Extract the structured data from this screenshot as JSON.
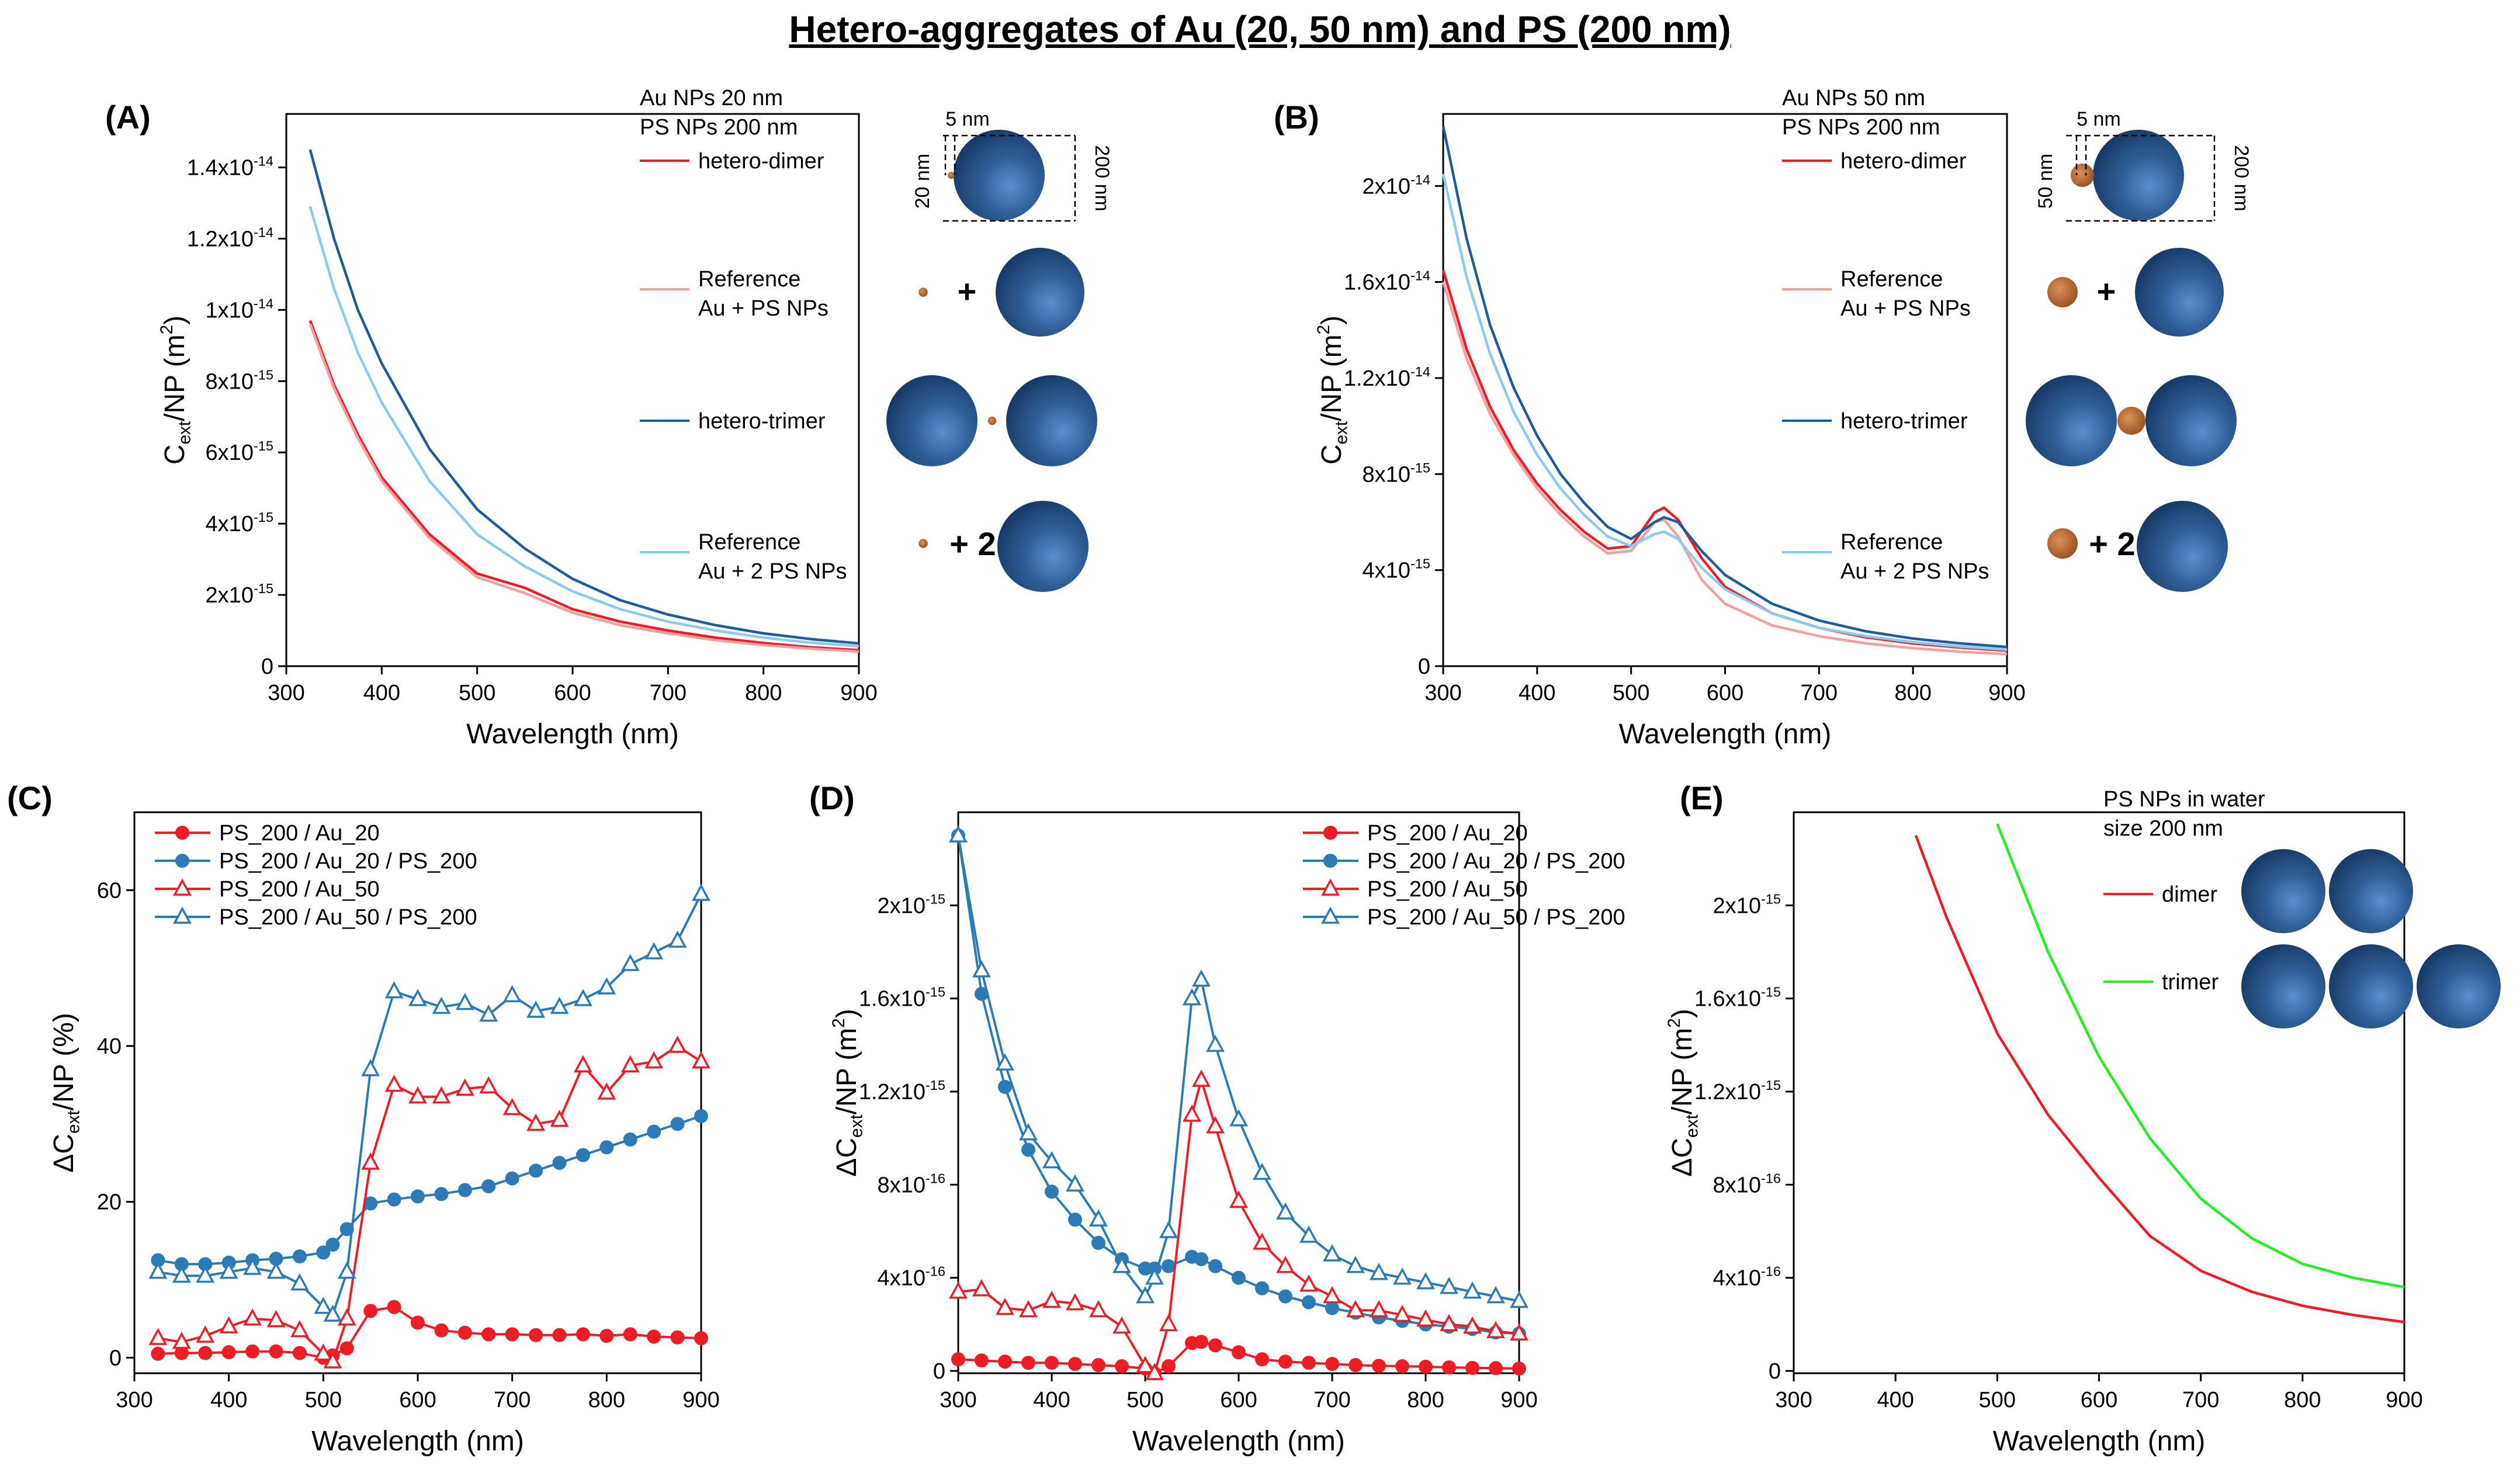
{
  "title": "Hetero-aggregates of Au (20, 50 nm) and PS (200 nm)",
  "colors": {
    "red": "#ee1c25",
    "pink": "#f4a0a0",
    "navy": "#1f5c99",
    "lightblue": "#8ec9f0",
    "steel": "#2c7bb6",
    "green": "#22ee22",
    "gold": "#b06030",
    "sphere": "#2f5f98"
  },
  "chart_data": [
    {
      "panel": "(A)",
      "type": "line",
      "xlabel": "Wavelength (nm)",
      "ylabel": "C_ext/NP (m^2)",
      "xlim": [
        300,
        900
      ],
      "ylim": [
        0,
        1.55e-14
      ],
      "xticks": [
        "300",
        "400",
        "500",
        "600",
        "700",
        "800",
        "900"
      ],
      "yticks": [
        {
          "v": 0,
          "label": "0"
        },
        {
          "v": 2e-15,
          "label": "2x10^-15"
        },
        {
          "v": 4e-15,
          "label": "4x10^-15"
        },
        {
          "v": 6e-15,
          "label": "6x10^-15"
        },
        {
          "v": 8e-15,
          "label": "8x10^-15"
        },
        {
          "v": 1e-14,
          "label": "1x10^-14"
        },
        {
          "v": 1.2e-14,
          "label": "1.2x10^-14"
        },
        {
          "v": 1.4e-14,
          "label": "1.4x10^-14"
        }
      ],
      "legend_header": [
        "Au NPs 20 nm",
        "PS NPs 200 nm"
      ],
      "legend_position": "right",
      "x": [
        325,
        350,
        375,
        400,
        450,
        500,
        550,
        600,
        650,
        700,
        750,
        800,
        850,
        900
      ],
      "series": [
        {
          "name": "hetero-dimer",
          "color": "red",
          "values": [
            9.7e-15,
            7.9e-15,
            6.5e-15,
            5.3e-15,
            3.7e-15,
            2.6e-15,
            2.2e-15,
            1.6e-15,
            1.25e-15,
            1e-15,
            8e-16,
            6.5e-16,
            5.3e-16,
            4.5e-16
          ]
        },
        {
          "name": "Reference Au + PS NPs",
          "color": "pink",
          "values": [
            9.6e-15,
            7.8e-15,
            6.4e-15,
            5.2e-15,
            3.6e-15,
            2.5e-15,
            2.05e-15,
            1.5e-15,
            1.15e-15,
            9.2e-16,
            7.3e-16,
            5.9e-16,
            4.9e-16,
            4.1e-16
          ]
        },
        {
          "name": "hetero-trimer",
          "color": "navy",
          "values": [
            1.45e-14,
            1.2e-14,
            1e-14,
            8.5e-15,
            6.1e-15,
            4.4e-15,
            3.3e-15,
            2.45e-15,
            1.85e-15,
            1.45e-15,
            1.15e-15,
            9.2e-16,
            7.6e-16,
            6.4e-16
          ]
        },
        {
          "name": "Reference Au + 2 PS NPs",
          "color": "lightblue",
          "values": [
            1.29e-14,
            1.06e-14,
            8.8e-15,
            7.4e-15,
            5.2e-15,
            3.7e-15,
            2.8e-15,
            2.1e-15,
            1.6e-15,
            1.25e-15,
            1e-15,
            8e-16,
            6.6e-16,
            5.6e-16
          ]
        }
      ],
      "labels": {
        "dim_small": "5 nm",
        "dim_au": "20 nm",
        "dim_ps": "200 nm",
        "plus": "+",
        "plus2": "+ 2"
      }
    },
    {
      "panel": "(B)",
      "type": "line",
      "xlabel": "Wavelength (nm)",
      "ylabel": "C_ext/NP (m^2)",
      "xlim": [
        300,
        900
      ],
      "ylim": [
        0,
        2.3e-14
      ],
      "xticks": [
        "300",
        "400",
        "500",
        "600",
        "700",
        "800",
        "900"
      ],
      "yticks": [
        {
          "v": 0,
          "label": "0"
        },
        {
          "v": 4e-15,
          "label": "4x10^-15"
        },
        {
          "v": 8e-15,
          "label": "8x10^-15"
        },
        {
          "v": 1.2e-14,
          "label": "1.2x10^-14"
        },
        {
          "v": 1.6e-14,
          "label": "1.6x10^-14"
        },
        {
          "v": 2e-14,
          "label": "2x10^-14"
        }
      ],
      "legend_header": [
        "Au NPs 50 nm",
        "PS NPs 200 nm"
      ],
      "legend_position": "right",
      "x": [
        300,
        325,
        350,
        375,
        400,
        425,
        450,
        475,
        500,
        525,
        535,
        550,
        575,
        600,
        650,
        700,
        750,
        800,
        850,
        900
      ],
      "series": [
        {
          "name": "hetero-dimer",
          "color": "red",
          "values": [
            1.65e-14,
            1.32e-14,
            1.08e-14,
            9e-15,
            7.6e-15,
            6.5e-15,
            5.6e-15,
            4.9e-15,
            5e-15,
            6.4e-15,
            6.6e-15,
            6.1e-15,
            4.5e-15,
            3.3e-15,
            2.2e-15,
            1.6e-15,
            1.2e-15,
            9.5e-16,
            7.8e-16,
            6.5e-16
          ]
        },
        {
          "name": "Reference Au + PS NPs",
          "color": "pink",
          "values": [
            1.6e-14,
            1.28e-14,
            1.05e-14,
            8.8e-15,
            7.4e-15,
            6.3e-15,
            5.4e-15,
            4.7e-15,
            4.8e-15,
            6e-15,
            6.1e-15,
            5.4e-15,
            3.6e-15,
            2.6e-15,
            1.7e-15,
            1.25e-15,
            9.5e-16,
            7.5e-16,
            6e-16,
            5e-16
          ]
        },
        {
          "name": "hetero-trimer",
          "color": "navy",
          "values": [
            2.25e-14,
            1.78e-14,
            1.42e-14,
            1.16e-14,
            9.6e-15,
            8e-15,
            6.8e-15,
            5.8e-15,
            5.3e-15,
            6e-15,
            6.2e-15,
            6e-15,
            4.8e-15,
            3.8e-15,
            2.6e-15,
            1.9e-15,
            1.45e-15,
            1.15e-15,
            9.5e-16,
            8e-16
          ]
        },
        {
          "name": "Reference Au + 2 PS NPs",
          "color": "lightblue",
          "values": [
            2.05e-14,
            1.62e-14,
            1.3e-14,
            1.06e-14,
            8.8e-15,
            7.4e-15,
            6.3e-15,
            5.4e-15,
            5e-15,
            5.5e-15,
            5.6e-15,
            5.3e-15,
            4.1e-15,
            3.2e-15,
            2.2e-15,
            1.6e-15,
            1.25e-15,
            1e-15,
            8.2e-16,
            6.9e-16
          ]
        }
      ],
      "labels": {
        "dim_small": "5 nm",
        "dim_au": "50 nm",
        "dim_ps": "200 nm",
        "plus": "+",
        "plus2": "+ 2"
      }
    },
    {
      "panel": "(C)",
      "type": "line",
      "xlabel": "Wavelength (nm)",
      "ylabel": "ΔC_ext/NP (%)",
      "xlim": [
        300,
        900
      ],
      "ylim": [
        -2,
        70
      ],
      "xticks": [
        "300",
        "400",
        "500",
        "600",
        "700",
        "800",
        "900"
      ],
      "yticks": [
        {
          "v": 0,
          "label": "0"
        },
        {
          "v": 20,
          "label": "20"
        },
        {
          "v": 40,
          "label": "40"
        },
        {
          "v": 60,
          "label": "60"
        }
      ],
      "legend_position": "top-left",
      "x": [
        325,
        350,
        375,
        400,
        425,
        450,
        475,
        500,
        510,
        525,
        550,
        575,
        600,
        625,
        650,
        675,
        700,
        725,
        750,
        775,
        800,
        825,
        850,
        875,
        900
      ],
      "series": [
        {
          "name": "PS_200 / Au_20",
          "color": "red",
          "marker": "filled-circle",
          "values": [
            0.5,
            0.6,
            0.6,
            0.7,
            0.8,
            0.8,
            0.6,
            0.0,
            0.3,
            1.2,
            6.0,
            6.5,
            4.5,
            3.5,
            3.2,
            3.0,
            3.0,
            2.9,
            2.9,
            3.0,
            2.8,
            3.0,
            2.7,
            2.6,
            2.5
          ]
        },
        {
          "name": "PS_200 / Au_20 / PS_200",
          "color": "steel",
          "marker": "filled-circle",
          "values": [
            12.5,
            12.0,
            12.0,
            12.2,
            12.5,
            12.7,
            13.0,
            13.5,
            14.5,
            16.5,
            19.8,
            20.3,
            20.7,
            21.0,
            21.5,
            22.0,
            23.0,
            24.0,
            25.0,
            26.0,
            27.0,
            28.0,
            29.0,
            30.0,
            31.0
          ]
        },
        {
          "name": "PS_200 / Au_50",
          "color": "red",
          "marker": "open-triangle",
          "values": [
            2.5,
            2.0,
            2.8,
            4.0,
            5.0,
            4.8,
            3.5,
            0.5,
            -0.5,
            5.0,
            25.0,
            35.0,
            33.5,
            33.5,
            34.5,
            34.8,
            32.0,
            30.0,
            30.5,
            37.5,
            34.0,
            37.5,
            38.0,
            40.0,
            38.0
          ]
        },
        {
          "name": "PS_200 / Au_50 / PS_200",
          "color": "steel",
          "marker": "open-triangle",
          "values": [
            11.0,
            10.5,
            10.5,
            11.0,
            11.5,
            11.0,
            9.5,
            6.5,
            5.5,
            11.0,
            37.0,
            47.0,
            46.0,
            45.0,
            45.5,
            44.0,
            46.5,
            44.5,
            45.0,
            46.0,
            47.5,
            50.5,
            52.0,
            53.5,
            59.5
          ]
        }
      ]
    },
    {
      "panel": "(D)",
      "type": "line",
      "xlabel": "Wavelength (nm)",
      "ylabel": "ΔC_ext/NP (m^2)",
      "xlim": [
        300,
        900
      ],
      "ylim": [
        -1e-17,
        2.4e-15
      ],
      "xticks": [
        "300",
        "400",
        "500",
        "600",
        "700",
        "800",
        "900"
      ],
      "yticks": [
        {
          "v": 0,
          "label": "0"
        },
        {
          "v": 4e-16,
          "label": "4x10^-16"
        },
        {
          "v": 8e-16,
          "label": "8x10^-16"
        },
        {
          "v": 1.2e-15,
          "label": "1.2x10^-15"
        },
        {
          "v": 1.6e-15,
          "label": "1.6x10^-15"
        },
        {
          "v": 2e-15,
          "label": "2x10^-15"
        }
      ],
      "legend_position": "top-right",
      "x": [
        300,
        325,
        350,
        375,
        400,
        425,
        450,
        475,
        500,
        510,
        525,
        550,
        560,
        575,
        600,
        625,
        650,
        675,
        700,
        725,
        750,
        775,
        800,
        825,
        850,
        875,
        900
      ],
      "series": [
        {
          "name": "PS_200 / Au_20",
          "color": "red",
          "marker": "filled-circle",
          "values": [
            5e-17,
            4.5e-17,
            4e-17,
            3.5e-17,
            3.5e-17,
            3e-17,
            2.5e-17,
            2e-17,
            1e-17,
            -1e-17,
            2e-17,
            1.2e-16,
            1.25e-16,
            1.1e-16,
            8e-17,
            5e-17,
            4e-17,
            3.5e-17,
            3e-17,
            2.5e-17,
            2.2e-17,
            2e-17,
            1.8e-17,
            1.5e-17,
            1.3e-17,
            1.2e-17,
            1e-17
          ]
        },
        {
          "name": "PS_200 / Au_20 / PS_200",
          "color": "steel",
          "marker": "filled-circle",
          "values": [
            2.3e-15,
            1.62e-15,
            1.22e-15,
            9.5e-16,
            7.7e-16,
            6.5e-16,
            5.5e-16,
            4.8e-16,
            4.4e-16,
            4.4e-16,
            4.5e-16,
            4.9e-16,
            4.8e-16,
            4.5e-16,
            4e-16,
            3.55e-16,
            3.2e-16,
            2.95e-16,
            2.7e-16,
            2.5e-16,
            2.3e-16,
            2.15e-16,
            2e-16,
            1.9e-16,
            1.8e-16,
            1.65e-16,
            1.6e-16
          ]
        },
        {
          "name": "PS_200 / Au_50",
          "color": "red",
          "marker": "open-triangle",
          "values": [
            3.4e-16,
            3.5e-16,
            2.7e-16,
            2.6e-16,
            3e-16,
            2.9e-16,
            2.6e-16,
            1.9e-16,
            2e-17,
            -1e-17,
            2e-16,
            1.1e-15,
            1.25e-15,
            1.05e-15,
            7.3e-16,
            5.5e-16,
            4.5e-16,
            3.7e-16,
            3.2e-16,
            2.6e-16,
            2.6e-16,
            2.4e-16,
            2.2e-16,
            2e-16,
            1.9e-16,
            1.7e-16,
            1.6e-16
          ]
        },
        {
          "name": "PS_200 / Au_50 / PS_200",
          "color": "steel",
          "marker": "open-triangle",
          "values": [
            2.3e-15,
            1.72e-15,
            1.32e-15,
            1.02e-15,
            9e-16,
            8e-16,
            6.5e-16,
            4.5e-16,
            3.2e-16,
            4e-16,
            6e-16,
            1.6e-15,
            1.68e-15,
            1.4e-15,
            1.08e-15,
            8.5e-16,
            6.8e-16,
            5.8e-16,
            5e-16,
            4.5e-16,
            4.2e-16,
            4e-16,
            3.8e-16,
            3.6e-16,
            3.4e-16,
            3.2e-16,
            3e-16
          ]
        }
      ]
    },
    {
      "panel": "(E)",
      "type": "line",
      "xlabel": "Wavelength (nm)",
      "ylabel": "ΔC_ext/NP (m^2)",
      "xlim": [
        300,
        900
      ],
      "ylim": [
        -1e-17,
        2.4e-15
      ],
      "xticks": [
        "300",
        "400",
        "500",
        "600",
        "700",
        "800",
        "900"
      ],
      "yticks": [
        {
          "v": 0,
          "label": "0"
        },
        {
          "v": 4e-16,
          "label": "4x10^-16"
        },
        {
          "v": 8e-16,
          "label": "8x10^-16"
        },
        {
          "v": 1.2e-15,
          "label": "1.2x10^-15"
        },
        {
          "v": 1.6e-15,
          "label": "1.6x10^-15"
        },
        {
          "v": 2e-15,
          "label": "2x10^-15"
        }
      ],
      "legend_header": [
        "PS NPs in water",
        "size 200 nm"
      ],
      "legend_position": "top-right",
      "x": [
        420,
        450,
        500,
        550,
        600,
        650,
        700,
        750,
        800,
        850,
        900
      ],
      "series": [
        {
          "name": "dimer",
          "color": "red",
          "values": [
            2.3e-15,
            1.95e-15,
            1.45e-15,
            1.1e-15,
            8.3e-16,
            5.8e-16,
            4.3e-16,
            3.4e-16,
            2.8e-16,
            2.4e-16,
            2.1e-16
          ]
        },
        {
          "name": "trimer",
          "color": "green",
          "values": [
            null,
            null,
            2.35e-15,
            1.8e-15,
            1.35e-15,
            1e-15,
            7.4e-16,
            5.7e-16,
            4.6e-16,
            4e-16,
            3.6e-16
          ]
        }
      ]
    }
  ]
}
